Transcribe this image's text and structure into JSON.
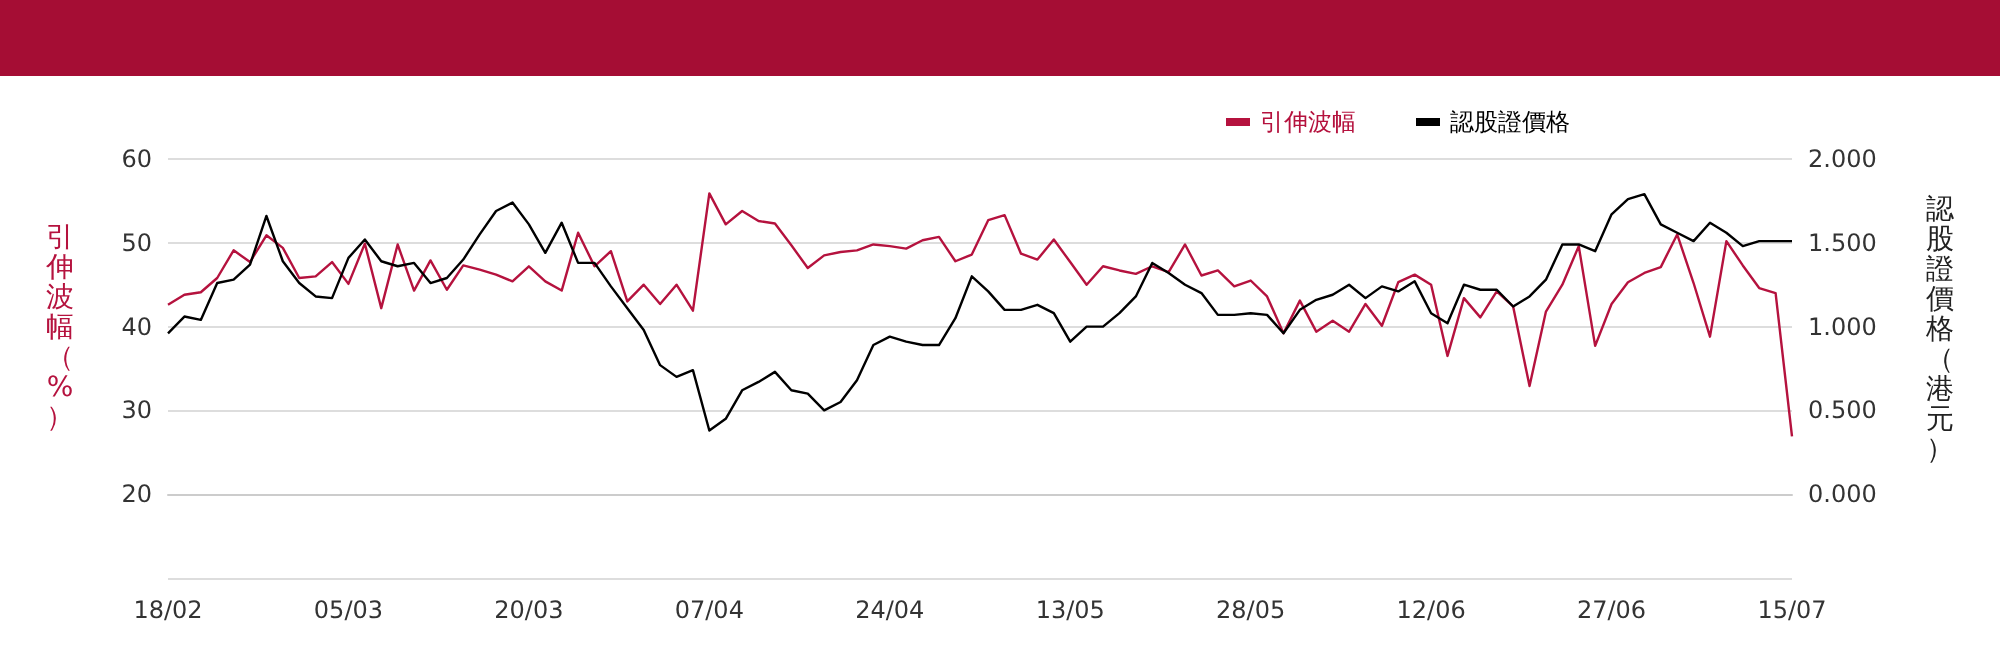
{
  "chart_data": {
    "type": "line",
    "ylabel": "引伸波幅（%）",
    "y2label": "認股證價格（港元）",
    "categories": [
      "18/02",
      null,
      null,
      null,
      null,
      null,
      null,
      null,
      null,
      null,
      null,
      "05/03",
      null,
      null,
      null,
      null,
      null,
      null,
      null,
      null,
      null,
      null,
      "20/03",
      null,
      null,
      null,
      null,
      null,
      null,
      null,
      null,
      null,
      null,
      "07/04",
      null,
      null,
      null,
      null,
      null,
      null,
      null,
      null,
      null,
      null,
      "24/04",
      null,
      null,
      null,
      null,
      null,
      null,
      null,
      null,
      null,
      null,
      "13/05",
      null,
      null,
      null,
      null,
      null,
      null,
      null,
      null,
      null,
      null,
      "28/05",
      null,
      null,
      null,
      null,
      null,
      null,
      null,
      null,
      null,
      null,
      "12/06",
      null,
      null,
      null,
      null,
      null,
      null,
      null,
      null,
      null,
      null,
      "27/06",
      null,
      null,
      null,
      null,
      null,
      null,
      null,
      null,
      null,
      null,
      "15/07"
    ],
    "series": [
      {
        "name": "引伸波幅",
        "color": "#b5123e",
        "values": [
          42.6,
          43.8,
          44.1,
          45.8,
          49.1,
          47.7,
          50.9,
          49.4,
          45.8,
          46.0,
          47.7,
          45.1,
          49.9,
          42.2,
          49.8,
          44.3,
          47.9,
          44.4,
          47.3,
          46.8,
          46.2,
          45.4,
          47.2,
          45.4,
          44.3,
          51.2,
          47.2,
          49.0,
          43.0,
          45.0,
          42.7,
          45.0,
          41.9,
          55.9,
          52.2,
          53.8,
          52.6,
          52.3,
          49.7,
          47.0,
          48.5,
          48.9,
          49.1,
          49.8,
          49.6,
          49.3,
          50.3,
          50.7,
          47.8,
          48.6,
          52.7,
          53.3,
          48.7,
          48.0,
          50.4,
          47.7,
          45.0,
          47.2,
          46.7,
          46.3,
          47.2,
          46.5,
          49.8,
          46.1,
          46.7,
          44.8,
          45.5,
          43.6,
          39.2,
          43.1,
          39.4,
          40.7,
          39.4,
          42.7,
          40.1,
          45.3,
          46.2,
          45.0,
          36.5,
          43.4,
          41.1,
          44.2,
          42.4,
          32.9,
          41.8,
          45.0,
          49.6,
          37.7,
          42.7,
          45.3,
          46.4,
          47.1,
          51.0,
          45.2,
          38.8,
          50.2,
          47.3,
          44.6,
          44.0,
          26.9
        ]
      },
      {
        "name": "認股證價格",
        "color": "#000000",
        "axis": "y2",
        "values": [
          0.96,
          1.06,
          1.04,
          1.26,
          1.28,
          1.37,
          1.66,
          1.39,
          1.26,
          1.18,
          1.17,
          1.41,
          1.52,
          1.39,
          1.36,
          1.38,
          1.26,
          1.29,
          1.4,
          1.55,
          1.69,
          1.74,
          1.61,
          1.44,
          1.62,
          1.38,
          1.38,
          1.24,
          1.11,
          0.98,
          0.77,
          0.7,
          0.74,
          0.38,
          0.45,
          0.62,
          0.67,
          0.73,
          0.62,
          0.6,
          0.5,
          0.55,
          0.68,
          0.89,
          0.94,
          0.91,
          0.89,
          0.89,
          1.05,
          1.3,
          1.21,
          1.1,
          1.1,
          1.13,
          1.08,
          0.91,
          1.0,
          1.0,
          1.08,
          1.18,
          1.38,
          1.32,
          1.25,
          1.2,
          1.07,
          1.07,
          1.08,
          1.07,
          0.96,
          1.1,
          1.16,
          1.19,
          1.25,
          1.17,
          1.24,
          1.21,
          1.27,
          1.08,
          1.02,
          1.25,
          1.22,
          1.22,
          1.12,
          1.18,
          1.28,
          1.49,
          1.49,
          1.45,
          1.67,
          1.76,
          1.79,
          1.61,
          1.56,
          1.51,
          1.62,
          1.56,
          1.48,
          1.51,
          1.51,
          1.51
        ]
      }
    ],
    "ylim": [
      10,
      60
    ],
    "yticks": [
      {
        "value": 10,
        "label": null
      },
      20,
      30,
      40,
      50,
      60
    ],
    "y2lim": [
      -0.5,
      2
    ],
    "y2ticks": [
      {
        "value": -0.5,
        "label": null
      },
      {
        "value": 0,
        "label": "0.000"
      },
      {
        "value": 0.5,
        "label": "0.500"
      },
      {
        "value": 1,
        "label": "1.000"
      },
      {
        "value": 1.5,
        "label": "1.500"
      },
      {
        "value": 2,
        "label": "2.000"
      }
    ],
    "grid": "y",
    "legend": "top right",
    "marker": "none",
    "line_style": "solid"
  }
}
